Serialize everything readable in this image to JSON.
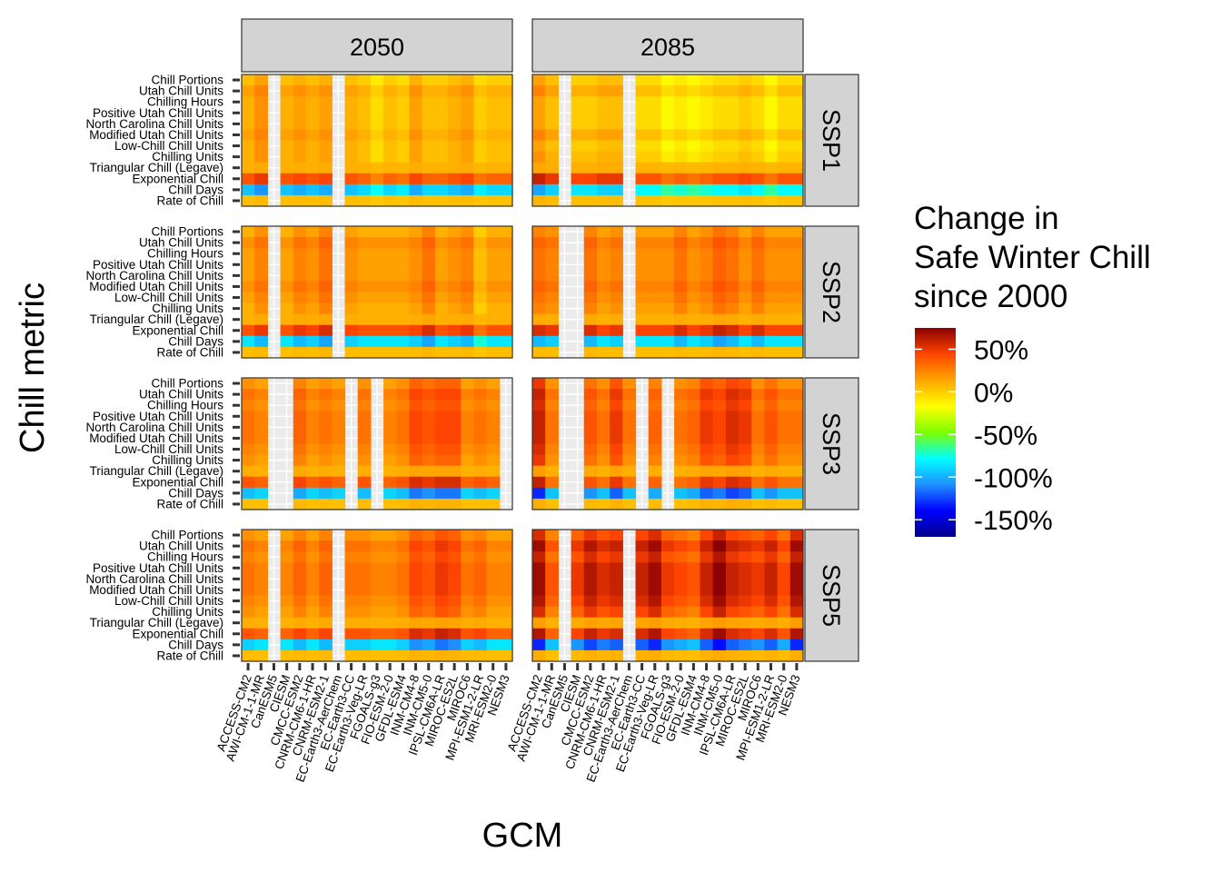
{
  "chart_data": {
    "type": "heatmap",
    "xlabel": "GCM",
    "ylabel": "Chill metric",
    "columns_facets": [
      "2050",
      "2085"
    ],
    "rows_facets": [
      "SSP1",
      "SSP2",
      "SSP3",
      "SSP5"
    ],
    "gcms": [
      "ACCESS-CM2",
      "AWI-CM-1-1-MR",
      "CanESM5",
      "CIESM",
      "CMCC-ESM2",
      "CNRM-CM6-1-HR",
      "CNRM-ESM2-1",
      "EC-Earth3-AerChem",
      "EC-Earth3-CC",
      "EC-Earth3-Veg-LR",
      "FGOALS-g3",
      "FIO-ESM-2-0",
      "GFDL-ESM4",
      "INM-CM4-8",
      "INM-CM5-0",
      "IPSL-CM6A-LR",
      "MIROC-ES2L",
      "MIROC6",
      "MPI-ESM1-2-LR",
      "MRI-ESM2-0",
      "NESM3"
    ],
    "metrics": [
      "Chill Portions",
      "Utah Chill Units",
      "Chilling Hours",
      "Positive Utah Chill Units",
      "North Carolina Chill Units",
      "Modified Utah Chill Units",
      "Low-Chill Chill Units",
      "Chilling Units",
      "Triangular Chill (Legave)",
      "Exponential Chill",
      "Chill Days",
      "Rate of Chill"
    ],
    "legend": {
      "title": [
        "Change in",
        "Safe Winter Chill",
        "since 2000"
      ],
      "labels": [
        "50%",
        "0%",
        "-50%",
        "-100%",
        "-150%"
      ],
      "ticks": [
        50,
        0,
        -50,
        -100,
        -150
      ],
      "range": [
        -170,
        75
      ],
      "colors": [
        "#00008b",
        "#0000ff",
        "#1e90ff",
        "#00ffff",
        "#7fff00",
        "#ffff00",
        "#ffa500",
        "#ff4500",
        "#8b0000"
      ]
    },
    "missing_gcms": {
      "2050|SSP1": [
        "CanESM5",
        "EC-Earth3-AerChem"
      ],
      "2085|SSP1": [
        "CanESM5",
        "EC-Earth3-AerChem"
      ],
      "2050|SSP2": [
        "CanESM5",
        "EC-Earth3-AerChem"
      ],
      "2085|SSP2": [
        "CanESM5",
        "CIESM",
        "EC-Earth3-AerChem"
      ],
      "2050|SSP3": [
        "CanESM5",
        "CIESM",
        "EC-Earth3-CC",
        "FGOALS-g3",
        "NESM3"
      ],
      "2085|SSP3": [
        "CanESM5",
        "CIESM",
        "EC-Earth3-CC",
        "FGOALS-g3"
      ],
      "2050|SSP5": [
        "CanESM5",
        "EC-Earth3-AerChem"
      ],
      "2085|SSP5": [
        "CanESM5",
        "EC-Earth3-AerChem"
      ]
    },
    "metric_values": {
      "2050|SSP1": [
        5,
        15,
        10,
        10,
        10,
        15,
        10,
        10,
        10,
        40,
        -95,
        5
      ],
      "2085|SSP1": [
        0,
        10,
        0,
        0,
        0,
        10,
        0,
        5,
        10,
        45,
        -85,
        5
      ],
      "2050|SSP2": [
        10,
        20,
        15,
        15,
        15,
        20,
        15,
        10,
        10,
        40,
        -85,
        5
      ],
      "2085|SSP2": [
        15,
        25,
        20,
        20,
        20,
        25,
        20,
        15,
        10,
        45,
        -85,
        5
      ],
      "2050|SSP3": [
        15,
        25,
        20,
        25,
        25,
        25,
        20,
        15,
        10,
        35,
        -90,
        5
      ],
      "2085|SSP3": [
        20,
        30,
        25,
        30,
        30,
        30,
        25,
        20,
        10,
        30,
        -95,
        5
      ],
      "2050|SSP5": [
        15,
        25,
        20,
        25,
        25,
        25,
        20,
        15,
        10,
        35,
        -85,
        5
      ],
      "2085|SSP5": [
        25,
        40,
        30,
        40,
        40,
        40,
        35,
        25,
        10,
        35,
        -95,
        5
      ]
    },
    "gcm_offsets": {
      "2050|SSP1": [
        0,
        10,
        0,
        0,
        5,
        0,
        5,
        0,
        0,
        -5,
        -15,
        -5,
        -10,
        5,
        -5,
        -5,
        0,
        5,
        -10,
        -5,
        -5
      ],
      "2085|SSP1": [
        15,
        5,
        10,
        0,
        0,
        5,
        5,
        0,
        -5,
        -5,
        -15,
        -10,
        -15,
        -10,
        -5,
        -5,
        0,
        -5,
        -15,
        -5,
        -5
      ],
      "2050|SSP2": [
        0,
        10,
        0,
        0,
        10,
        5,
        15,
        0,
        5,
        0,
        0,
        0,
        0,
        5,
        15,
        0,
        5,
        10,
        -10,
        0,
        0
      ],
      "2085|SSP2": [
        10,
        5,
        0,
        0,
        10,
        0,
        5,
        0,
        0,
        0,
        0,
        10,
        0,
        5,
        15,
        10,
        0,
        10,
        0,
        0,
        0
      ],
      "2050|SSP3": [
        5,
        0,
        0,
        0,
        10,
        0,
        5,
        0,
        0,
        5,
        0,
        0,
        5,
        20,
        15,
        20,
        20,
        0,
        5,
        0,
        0
      ],
      "2085|SSP3": [
        30,
        0,
        0,
        0,
        10,
        0,
        20,
        0,
        0,
        5,
        0,
        0,
        5,
        20,
        15,
        25,
        20,
        0,
        10,
        0,
        0
      ],
      "2050|SSP5": [
        5,
        0,
        0,
        0,
        10,
        0,
        10,
        0,
        5,
        5,
        0,
        0,
        5,
        20,
        15,
        25,
        20,
        5,
        10,
        0,
        0
      ],
      "2085|SSP5": [
        30,
        0,
        0,
        10,
        25,
        15,
        20,
        0,
        20,
        30,
        10,
        5,
        0,
        20,
        35,
        20,
        15,
        10,
        20,
        5,
        30
      ]
    }
  }
}
